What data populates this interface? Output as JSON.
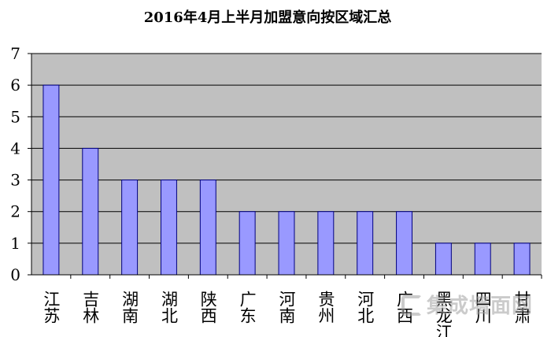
{
  "chart_data": {
    "type": "bar",
    "title": "2016年4月上半月加盟意向按区域汇总",
    "categories": [
      "江苏",
      "吉林",
      "湖南",
      "湖北",
      "陕西",
      "广东",
      "河南",
      "贵州",
      "河北",
      "广西",
      "黑龙江",
      "四川",
      "甘肃"
    ],
    "values": [
      6,
      4,
      3,
      3,
      3,
      2,
      2,
      2,
      2,
      2,
      1,
      1,
      1
    ],
    "ylim": [
      0,
      7
    ],
    "yticks": [
      "0",
      "1",
      "2",
      "3",
      "4",
      "5",
      "6",
      "7"
    ],
    "grid": true,
    "legend": "none",
    "xlabel": "",
    "ylabel": ""
  },
  "colors": {
    "bar_fill": "#9999ff",
    "bar_stroke": "#000080",
    "plot_background": "#c0c0c0",
    "grid_line": "#000000"
  },
  "watermark": {
    "text": "集成墙面网"
  }
}
